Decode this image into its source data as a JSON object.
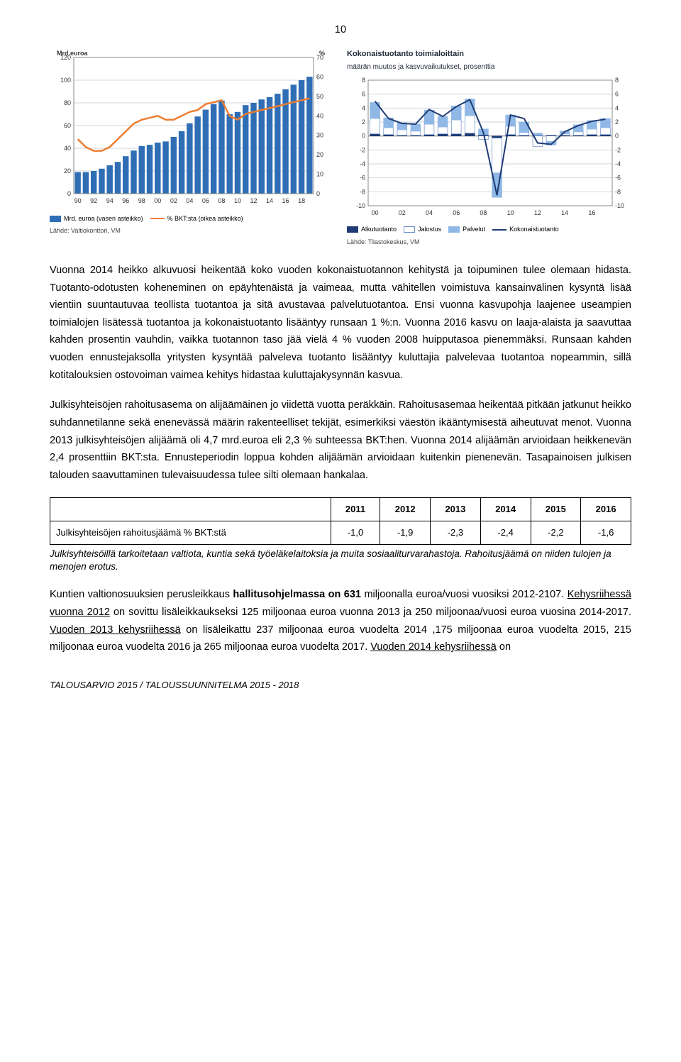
{
  "page_number": "10",
  "chart_left": {
    "y_left_label": "Mrd.euroa",
    "y_right_label": "%",
    "y_left_ticks": [
      "0",
      "20",
      "40",
      "60",
      "80",
      "100",
      "120"
    ],
    "y_right_ticks": [
      "0",
      "10",
      "20",
      "30",
      "40",
      "50",
      "60",
      "70"
    ],
    "x_ticks": [
      "90",
      "92",
      "94",
      "96",
      "98",
      "00",
      "02",
      "04",
      "06",
      "08",
      "10",
      "12",
      "14",
      "16",
      "18"
    ],
    "bar_color": "#2f6eb4",
    "line_color": "#ed7d31",
    "grid_color": "#cfd6de",
    "bg": "#ffffff",
    "bar_values": [
      19,
      19,
      20,
      22,
      25,
      28,
      33,
      38,
      42,
      43,
      45,
      46,
      50,
      55,
      62,
      68,
      74,
      79,
      82,
      70,
      72,
      78,
      80,
      83,
      85,
      88,
      92,
      96,
      100,
      103
    ],
    "bar_max": 120,
    "line_values_pct": [
      28,
      24,
      22,
      22,
      24,
      28,
      32,
      36,
      38,
      39,
      40,
      38,
      38,
      40,
      42,
      43,
      46,
      47,
      48,
      40,
      38,
      41,
      42,
      43,
      44,
      45,
      46,
      47,
      48,
      49
    ],
    "line_max": 70,
    "legend_bar": "Mrd. euroa (vasen asteikko)",
    "legend_line": "% BKT:sta (oikea asteikko)",
    "source": "Lähde: Valtiokonttori, VM"
  },
  "chart_right": {
    "title": "Kokonaistuotanto toimialoittain",
    "subtitle": "määrän muutos ja kasvuvaikutukset, prosenttia",
    "y_ticks": [
      "-10",
      "-8",
      "-6",
      "-4",
      "-2",
      "0",
      "2",
      "4",
      "6",
      "8"
    ],
    "x_ticks": [
      "00",
      "02",
      "04",
      "06",
      "08",
      "10",
      "12",
      "14",
      "16"
    ],
    "grid_color": "#cfd6de",
    "bg": "#ffffff",
    "col_alku": "#1f3b73",
    "col_jalostus": "#ffffff",
    "col_jalostus_border": "#6a8cc7",
    "col_palvelut": "#8fb8e6",
    "line_color": "#1f3b73",
    "years": [
      0,
      1,
      2,
      3,
      4,
      5,
      6,
      7,
      8,
      9,
      10,
      11,
      12,
      13,
      14,
      15,
      16,
      17
    ],
    "alku": [
      0.3,
      0.2,
      0.1,
      0.1,
      0.2,
      0.3,
      0.3,
      0.4,
      0.2,
      -0.3,
      0.2,
      0.1,
      0.1,
      0.1,
      0.1,
      0.1,
      0.2,
      0.2
    ],
    "jalostus": [
      2.2,
      1.0,
      0.8,
      0.6,
      1.5,
      1.0,
      2.0,
      2.5,
      -0.5,
      -5.0,
      1.2,
      0.4,
      -1.5,
      -0.8,
      0.2,
      0.5,
      0.8,
      1.0
    ],
    "palvelut": [
      2.3,
      1.4,
      1.0,
      1.0,
      2.0,
      1.5,
      2.0,
      2.4,
      0.8,
      -3.5,
      1.6,
      1.5,
      0.3,
      -0.5,
      0.4,
      1.0,
      1.2,
      1.3
    ],
    "total_line": [
      5.0,
      2.5,
      1.8,
      1.7,
      3.8,
      2.8,
      4.2,
      5.2,
      0.5,
      -8.5,
      3.0,
      2.5,
      -1.0,
      -1.2,
      0.6,
      1.5,
      2.1,
      2.4
    ],
    "y_min": -10,
    "y_max": 8,
    "legend_alku": "Alkutuotanto",
    "legend_jalostus": "Jalostus",
    "legend_palvelut": "Palvelut",
    "legend_total": "Kokonaistuotanto",
    "source": "Lähde: Tilastokeskus, VM"
  },
  "para1": "Vuonna 2014 heikko alkuvuosi heikentää koko vuoden kokonaistuotannon kehitystä  ja toipuminen tulee olemaan hidasta. Tuotanto-odotusten koheneminen on epäyhtenäistä ja vaimeaa, mutta vähitellen voimistuva kansainvälinen kysyntä lisää vientiin suuntautuvaa teollista tuotantoa ja sitä avustavaa palvelutuotantoa. Ensi vuonna kasvupohja laajenee useampien toimialojen lisätessä tuotantoa ja kokonaistuotanto lisääntyy runsaan 1 %:n. Vuonna 2016 kasvu on laaja-alaista ja saavuttaa kahden prosentin vauhdin, vaikka tuotannon taso jää vielä 4 % vuoden 2008 huipputasoa pienemmäksi. Runsaan kahden vuoden ennustejaksolla yritysten kysyntää palveleva tuotanto lisääntyy kuluttajia palvelevaa tuotantoa nopeammin, sillä kotitalouksien ostovoiman vaimea kehitys hidastaa kuluttajakysynnän kasvua.",
  "para2": "Julkisyhteisöjen rahoitusasema on alijäämäinen jo viidettä vuotta peräkkäin. Rahoitusasemaa heikentää pitkään jatkunut heikko suhdannetilanne sekä enenevässä määrin rakenteelliset tekijät, esimerkiksi väestön ikääntymisestä aiheutuvat menot. Vuonna 2013 julkisyhteisöjen alijäämä oli 4,7 mrd.euroa eli 2,3 % suhteessa BKT:hen. Vuonna 2014 alijäämän arvioidaan heikkenevän 2,4 prosenttiin BKT:sta. Ennusteperiodin loppua kohden alijäämän arvioidaan kuitenkin pienenevän. Tasapainoisen julkisen talouden saavuttaminen tulevaisuudessa tulee silti olemaan hankalaa.",
  "table": {
    "headers": [
      "",
      "2011",
      "2012",
      "2013",
      "2014",
      "2015",
      "2016"
    ],
    "row_label": "Julkisyhteisöjen rahoitusjäämä % BKT:stä",
    "row_values": [
      "-1,0",
      "-1,9",
      "-2,3",
      "-2,4",
      "-2,2",
      "-1,6"
    ]
  },
  "footnote": "Julkisyhteisöillä tarkoitetaan valtiota, kuntia sekä työeläkelaitoksia ja muita sosiaaliturvarahastoja. Rahoitusjäämä on niiden tulojen ja menojen erotus.",
  "para3_pre": "Kuntien valtionosuuksien perusleikkaus ",
  "para3_bold": "hallitusohjelmassa on 631",
  "para3_post1": " miljoonalla euroa/vuosi vuosiksi 2012-2107. ",
  "para3_ul1": "Kehysriihessä vuonna 2012",
  "para3_mid1": " on sovittu lisäleikkaukseksi 125 miljoonaa euroa vuonna 2013 ja 250 miljoonaa/vuosi euroa vuosina 2014-2017. ",
  "para3_ul2": "Vuoden 2013 kehysriihessä",
  "para3_mid2": " on lisäleikattu 237 miljoonaa euroa vuodelta 2014 ,175 miljoonaa euroa vuodelta 2015, 215 miljoonaa euroa vuodelta 2016 ja 265 miljoonaa euroa vuodelta 2017. ",
  "para3_ul3": "Vuoden 2014 kehysriihessä",
  "para3_end": " on",
  "footer": "TALOUSARVIO 2015 / TALOUSSUUNNITELMA 2015 - 2018"
}
